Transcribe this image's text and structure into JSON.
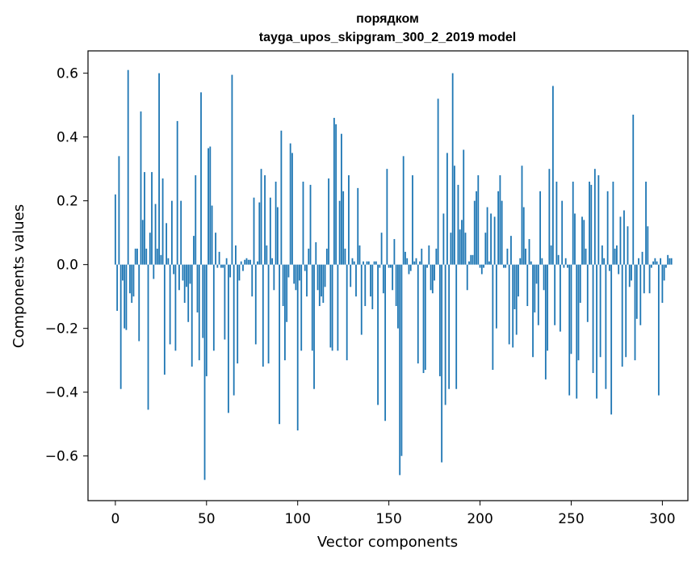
{
  "chart_data": {
    "type": "bar",
    "title_line1": "порядком",
    "title_line2": "tayga_upos_skipgram_300_2_2019 model",
    "xlabel": "Vector components",
    "ylabel": "Components values",
    "xlim": [
      -15,
      314
    ],
    "ylim": [
      -0.74,
      0.67
    ],
    "xticks": [
      0,
      50,
      100,
      150,
      200,
      250,
      300
    ],
    "xtick_labels": [
      "0",
      "50",
      "100",
      "150",
      "200",
      "250",
      "300"
    ],
    "yticks": [
      -0.6,
      -0.4,
      -0.2,
      0.0,
      0.2,
      0.4,
      0.6
    ],
    "ytick_labels": [
      "−0.6",
      "−0.4",
      "−0.2",
      "0.0",
      "0.2",
      "0.4",
      "0.6"
    ],
    "grid": false,
    "bar_color": "#1f77b4",
    "values": [
      0.22,
      -0.145,
      0.34,
      -0.39,
      -0.05,
      -0.2,
      -0.205,
      0.61,
      -0.09,
      -0.12,
      -0.1,
      0.05,
      0.05,
      -0.24,
      0.48,
      0.14,
      0.29,
      0.05,
      -0.455,
      0.1,
      0.29,
      -0.045,
      0.19,
      0.05,
      0.6,
      0.03,
      0.27,
      -0.345,
      0.13,
      0.02,
      -0.25,
      0.2,
      -0.03,
      -0.27,
      0.45,
      -0.08,
      0.2,
      -0.05,
      -0.12,
      -0.07,
      -0.18,
      -0.06,
      -0.32,
      0.09,
      0.28,
      -0.15,
      -0.3,
      0.54,
      -0.23,
      -0.675,
      -0.35,
      0.365,
      0.37,
      0.185,
      -0.27,
      0.1,
      -0.01,
      0.04,
      -0.01,
      -0.01,
      -0.235,
      0.02,
      -0.465,
      -0.04,
      0.595,
      -0.41,
      0.06,
      -0.31,
      -0.05,
      0.01,
      -0.02,
      0.015,
      0.02,
      0.015,
      0.015,
      -0.1,
      0.21,
      -0.25,
      0.01,
      0.195,
      0.3,
      -0.32,
      0.28,
      0.06,
      -0.31,
      0.21,
      0.02,
      -0.08,
      0.26,
      0.18,
      -0.5,
      0.42,
      -0.13,
      -0.3,
      -0.18,
      -0.04,
      0.38,
      0.35,
      -0.06,
      -0.08,
      -0.52,
      -0.05,
      -0.27,
      0.26,
      -0.02,
      -0.1,
      0.05,
      0.25,
      -0.27,
      -0.39,
      0.07,
      -0.08,
      -0.13,
      -0.1,
      -0.12,
      -0.07,
      0.05,
      0.27,
      -0.26,
      -0.27,
      0.46,
      0.44,
      -0.27,
      0.2,
      0.41,
      0.23,
      0.05,
      -0.3,
      0.28,
      -0.07,
      0.02,
      0.01,
      -0.1,
      0.24,
      0.06,
      -0.22,
      0.01,
      -0.13,
      0.01,
      0.01,
      -0.1,
      -0.14,
      0.01,
      0.01,
      -0.44,
      -0.01,
      0.1,
      -0.09,
      -0.49,
      0.3,
      -0.01,
      -0.01,
      -0.08,
      0.08,
      -0.13,
      -0.2,
      -0.66,
      -0.6,
      0.34,
      0.04,
      0.02,
      -0.03,
      -0.02,
      0.28,
      0.01,
      0.02,
      -0.31,
      0.01,
      0.05,
      -0.34,
      -0.33,
      -0.01,
      0.06,
      -0.08,
      -0.09,
      -0.05,
      0.05,
      0.52,
      -0.35,
      -0.62,
      0.16,
      -0.44,
      0.35,
      -0.39,
      0.1,
      0.6,
      0.31,
      -0.39,
      0.25,
      0.11,
      0.14,
      0.36,
      0.1,
      -0.08,
      0.01,
      0.03,
      0.03,
      0.2,
      0.23,
      0.28,
      -0.01,
      -0.03,
      -0.01,
      0.1,
      0.18,
      0.01,
      0.16,
      -0.33,
      0.15,
      -0.2,
      0.23,
      0.28,
      0.2,
      -0.01,
      -0.01,
      0.05,
      -0.25,
      0.09,
      -0.26,
      -0.14,
      -0.22,
      -0.1,
      0.02,
      0.31,
      0.18,
      0.05,
      -0.13,
      0.08,
      0.01,
      -0.29,
      -0.15,
      -0.06,
      -0.19,
      0.23,
      0.02,
      -0.08,
      -0.36,
      -0.27,
      0.3,
      0.06,
      0.56,
      -0.19,
      0.26,
      0.03,
      -0.21,
      0.2,
      -0.01,
      0.02,
      -0.01,
      -0.41,
      -0.28,
      0.26,
      0.16,
      -0.42,
      -0.3,
      -0.12,
      0.15,
      0.14,
      0.05,
      -0.18,
      0.26,
      0.25,
      -0.34,
      0.3,
      -0.42,
      0.28,
      -0.29,
      0.06,
      0.02,
      -0.39,
      0.23,
      -0.02,
      -0.47,
      0.26,
      0.05,
      0.06,
      -0.03,
      0.15,
      -0.32,
      0.17,
      -0.29,
      0.12,
      -0.07,
      -0.05,
      0.47,
      -0.3,
      -0.17,
      0.02,
      -0.19,
      0.04,
      -0.09,
      0.26,
      0.12,
      -0.09,
      -0.01,
      0.01,
      0.02,
      0.01,
      -0.41,
      0.02,
      -0.12,
      -0.05,
      -0.01,
      0.03,
      0.02,
      0.02
    ]
  }
}
